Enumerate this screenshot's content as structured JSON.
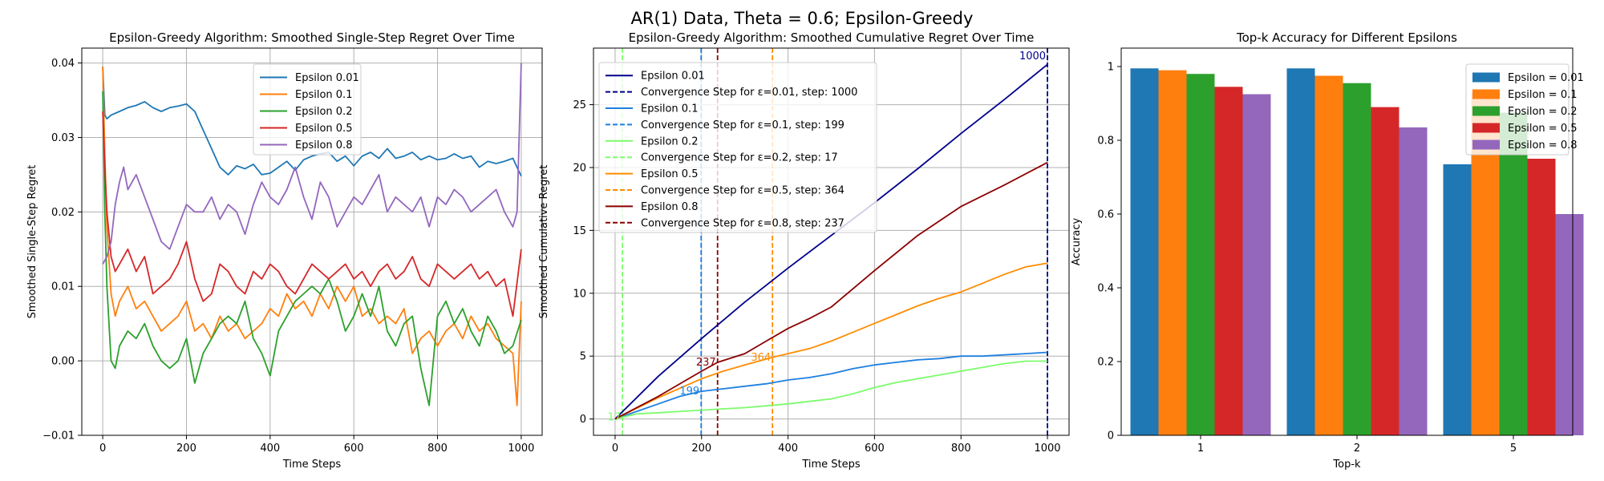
{
  "suptitle": "AR(1) Data, Theta = 0.6; Epsilon-Greedy",
  "chart_data": [
    {
      "type": "line",
      "title": "Epsilon-Greedy Algorithm: Smoothed Single-Step Regret Over Time",
      "xlabel": "Time Steps",
      "ylabel": "Smoothed Single-Step Regret",
      "xlim": [
        -50,
        1050
      ],
      "ylim": [
        -0.01,
        0.042
      ],
      "xticks": [
        0,
        200,
        400,
        600,
        800,
        1000
      ],
      "yticks": [
        -0.01,
        0.0,
        0.01,
        0.02,
        0.03,
        0.04
      ],
      "ytick_labels": [
        "−0.01",
        "0.00",
        "0.01",
        "0.02",
        "0.03",
        "0.04"
      ],
      "grid": true,
      "legend_position": "upper center",
      "series": [
        {
          "name": "Epsilon 0.01",
          "color": "#1f77b4",
          "x": [
            0,
            5,
            10,
            20,
            40,
            60,
            80,
            100,
            120,
            140,
            160,
            180,
            200,
            220,
            240,
            260,
            280,
            300,
            320,
            340,
            360,
            380,
            400,
            420,
            440,
            460,
            480,
            500,
            520,
            540,
            560,
            580,
            600,
            620,
            640,
            660,
            680,
            700,
            720,
            740,
            760,
            780,
            800,
            820,
            840,
            860,
            880,
            900,
            920,
            940,
            960,
            980,
            1000
          ],
          "y": [
            0.0395,
            0.033,
            0.0325,
            0.033,
            0.0335,
            0.034,
            0.0343,
            0.0348,
            0.034,
            0.0335,
            0.034,
            0.0342,
            0.0345,
            0.0335,
            0.031,
            0.0285,
            0.026,
            0.025,
            0.0262,
            0.0258,
            0.0264,
            0.025,
            0.0252,
            0.026,
            0.0268,
            0.0256,
            0.027,
            0.0275,
            0.0278,
            0.028,
            0.0268,
            0.0275,
            0.0262,
            0.0275,
            0.028,
            0.0272,
            0.0285,
            0.0272,
            0.0275,
            0.028,
            0.027,
            0.0275,
            0.027,
            0.0272,
            0.0278,
            0.0272,
            0.0275,
            0.026,
            0.0268,
            0.0265,
            0.0268,
            0.0272,
            0.0248
          ]
        },
        {
          "name": "Epsilon 0.1",
          "color": "#ff7f0e",
          "x": [
            0,
            5,
            10,
            20,
            30,
            40,
            60,
            80,
            100,
            120,
            140,
            160,
            180,
            200,
            220,
            240,
            260,
            280,
            300,
            320,
            340,
            360,
            380,
            400,
            420,
            440,
            460,
            480,
            500,
            520,
            540,
            560,
            580,
            600,
            620,
            640,
            660,
            680,
            700,
            720,
            740,
            760,
            780,
            800,
            820,
            840,
            860,
            880,
            900,
            920,
            940,
            960,
            980,
            990,
            1000
          ],
          "y": [
            0.0395,
            0.028,
            0.018,
            0.009,
            0.006,
            0.008,
            0.01,
            0.007,
            0.008,
            0.006,
            0.004,
            0.005,
            0.006,
            0.008,
            0.004,
            0.005,
            0.003,
            0.006,
            0.004,
            0.005,
            0.003,
            0.004,
            0.005,
            0.007,
            0.006,
            0.009,
            0.007,
            0.008,
            0.006,
            0.009,
            0.007,
            0.01,
            0.008,
            0.01,
            0.006,
            0.007,
            0.005,
            0.006,
            0.005,
            0.007,
            0.001,
            0.003,
            0.004,
            0.002,
            0.004,
            0.005,
            0.003,
            0.006,
            0.004,
            0.005,
            0.003,
            0.002,
            0.001,
            -0.006,
            0.008
          ]
        },
        {
          "name": "Epsilon 0.2",
          "color": "#2ca02c",
          "x": [
            0,
            5,
            10,
            20,
            30,
            40,
            60,
            80,
            100,
            120,
            140,
            160,
            180,
            200,
            220,
            240,
            260,
            280,
            300,
            320,
            340,
            360,
            380,
            400,
            420,
            440,
            460,
            480,
            500,
            520,
            540,
            560,
            580,
            600,
            620,
            640,
            660,
            680,
            700,
            720,
            740,
            760,
            780,
            800,
            820,
            840,
            860,
            880,
            900,
            920,
            940,
            960,
            980,
            1000
          ],
          "y": [
            0.0362,
            0.02,
            0.01,
            0.0,
            -0.001,
            0.002,
            0.004,
            0.003,
            0.005,
            0.002,
            0.0,
            -0.001,
            0.0,
            0.003,
            -0.003,
            0.001,
            0.003,
            0.005,
            0.006,
            0.005,
            0.008,
            0.003,
            0.001,
            -0.002,
            0.004,
            0.006,
            0.008,
            0.009,
            0.01,
            0.009,
            0.011,
            0.008,
            0.004,
            0.006,
            0.009,
            0.006,
            0.01,
            0.004,
            0.002,
            0.005,
            0.006,
            -0.001,
            -0.006,
            0.006,
            0.008,
            0.005,
            0.007,
            0.004,
            0.002,
            0.006,
            0.004,
            0.001,
            0.002,
            0.0055
          ]
        },
        {
          "name": "Epsilon 0.5",
          "color": "#d62728",
          "x": [
            0,
            5,
            10,
            20,
            30,
            40,
            60,
            80,
            100,
            120,
            140,
            160,
            180,
            200,
            220,
            240,
            260,
            280,
            300,
            320,
            340,
            360,
            380,
            400,
            420,
            440,
            460,
            480,
            500,
            520,
            540,
            560,
            580,
            600,
            620,
            640,
            660,
            680,
            700,
            720,
            740,
            760,
            780,
            800,
            820,
            840,
            860,
            880,
            900,
            920,
            940,
            960,
            980,
            1000
          ],
          "y": [
            0.0335,
            0.026,
            0.02,
            0.014,
            0.012,
            0.013,
            0.015,
            0.012,
            0.014,
            0.009,
            0.01,
            0.011,
            0.013,
            0.016,
            0.011,
            0.008,
            0.009,
            0.013,
            0.012,
            0.01,
            0.009,
            0.012,
            0.011,
            0.013,
            0.012,
            0.01,
            0.009,
            0.011,
            0.013,
            0.012,
            0.011,
            0.012,
            0.013,
            0.011,
            0.012,
            0.01,
            0.012,
            0.013,
            0.011,
            0.012,
            0.014,
            0.011,
            0.01,
            0.013,
            0.012,
            0.011,
            0.012,
            0.013,
            0.011,
            0.012,
            0.01,
            0.011,
            0.006,
            0.015
          ]
        },
        {
          "name": "Epsilon 0.8",
          "color": "#9467bd",
          "x": [
            0,
            10,
            20,
            30,
            40,
            50,
            60,
            80,
            100,
            120,
            140,
            160,
            180,
            200,
            220,
            240,
            260,
            280,
            300,
            320,
            340,
            360,
            380,
            400,
            420,
            440,
            460,
            480,
            500,
            520,
            540,
            560,
            580,
            600,
            620,
            640,
            660,
            680,
            700,
            720,
            740,
            760,
            780,
            800,
            820,
            840,
            860,
            880,
            900,
            920,
            940,
            960,
            980,
            990,
            1000
          ],
          "y": [
            0.013,
            0.014,
            0.016,
            0.021,
            0.024,
            0.026,
            0.023,
            0.025,
            0.022,
            0.019,
            0.016,
            0.015,
            0.018,
            0.021,
            0.02,
            0.02,
            0.022,
            0.019,
            0.021,
            0.02,
            0.017,
            0.021,
            0.024,
            0.022,
            0.021,
            0.023,
            0.026,
            0.022,
            0.019,
            0.024,
            0.022,
            0.018,
            0.02,
            0.022,
            0.021,
            0.023,
            0.025,
            0.02,
            0.022,
            0.021,
            0.02,
            0.022,
            0.018,
            0.022,
            0.021,
            0.023,
            0.022,
            0.02,
            0.021,
            0.022,
            0.023,
            0.02,
            0.018,
            0.02,
            0.04
          ]
        }
      ]
    },
    {
      "type": "line",
      "title": "Epsilon-Greedy Algorithm: Smoothed Cumulative Regret Over Time",
      "xlabel": "Time Steps",
      "ylabel": "Smoothed Cumulative Regret",
      "xlim": [
        -50,
        1050
      ],
      "ylim": [
        -1.3,
        29.5
      ],
      "xticks": [
        0,
        200,
        400,
        600,
        800,
        1000
      ],
      "yticks": [
        0,
        5,
        10,
        15,
        20,
        25
      ],
      "grid": true,
      "legend_position": "upper left",
      "series": [
        {
          "name": "Epsilon 0.01",
          "color": "#00008b",
          "x": [
            0,
            100,
            200,
            300,
            400,
            500,
            600,
            700,
            800,
            900,
            1000
          ],
          "y": [
            0,
            3.4,
            6.4,
            9.3,
            12.0,
            14.6,
            17.2,
            19.9,
            22.7,
            25.4,
            28.2
          ]
        },
        {
          "name": "Epsilon 0.1",
          "color": "#1e7fe0",
          "x": [
            0,
            100,
            150,
            200,
            250,
            300,
            350,
            400,
            450,
            500,
            550,
            600,
            650,
            700,
            750,
            800,
            850,
            900,
            950,
            1000
          ],
          "y": [
            0,
            1.2,
            1.8,
            2.2,
            2.4,
            2.6,
            2.8,
            3.1,
            3.3,
            3.6,
            4.0,
            4.3,
            4.5,
            4.7,
            4.8,
            5.0,
            5.0,
            5.1,
            5.2,
            5.3
          ]
        },
        {
          "name": "Epsilon 0.2",
          "color": "#7cfc6c",
          "x": [
            0,
            50,
            100,
            200,
            300,
            400,
            450,
            500,
            550,
            600,
            650,
            700,
            750,
            800,
            850,
            900,
            950,
            1000
          ],
          "y": [
            0,
            0.4,
            0.5,
            0.7,
            0.9,
            1.2,
            1.4,
            1.6,
            2.0,
            2.5,
            2.9,
            3.2,
            3.5,
            3.8,
            4.1,
            4.4,
            4.6,
            4.6
          ]
        },
        {
          "name": "Epsilon 0.5",
          "color": "#ff8c00",
          "x": [
            0,
            100,
            200,
            250,
            300,
            364,
            400,
            450,
            500,
            550,
            600,
            650,
            700,
            750,
            800,
            850,
            900,
            950,
            1000
          ],
          "y": [
            0,
            1.7,
            3.2,
            3.8,
            4.3,
            4.9,
            5.2,
            5.6,
            6.2,
            6.9,
            7.6,
            8.3,
            9.0,
            9.6,
            10.1,
            10.8,
            11.5,
            12.1,
            12.4
          ]
        },
        {
          "name": "Epsilon 0.8",
          "color": "#8b0000",
          "x": [
            0,
            100,
            200,
            237,
            300,
            350,
            400,
            450,
            500,
            600,
            700,
            800,
            900,
            1000
          ],
          "y": [
            0,
            1.8,
            3.8,
            4.5,
            5.2,
            6.2,
            7.2,
            8.0,
            8.9,
            11.8,
            14.6,
            16.9,
            18.6,
            20.4
          ]
        }
      ],
      "vlines": [
        {
          "label": "Convergence Step for ε=0.01, step: 1000",
          "x": 1000,
          "color": "#00008b",
          "annotation": "1000"
        },
        {
          "label": "Convergence Step for ε=0.1, step: 199",
          "x": 199,
          "color": "#1e7fe0",
          "annotation": "199"
        },
        {
          "label": "Convergence Step for ε=0.2, step: 17",
          "x": 17,
          "color": "#7cfc6c",
          "annotation": "17"
        },
        {
          "label": "Convergence Step for ε=0.5, step: 364",
          "x": 364,
          "color": "#ff8c00",
          "annotation": "364"
        },
        {
          "label": "Convergence Step for ε=0.8, step: 237",
          "x": 237,
          "color": "#8b0000",
          "annotation": "237"
        }
      ]
    },
    {
      "type": "bar",
      "title": "Top-k Accuracy for Different Epsilons",
      "xlabel": "Top-k",
      "ylabel": "Accuracy",
      "categories": [
        "1",
        "2",
        "5"
      ],
      "ylim": [
        0,
        1.05
      ],
      "yticks": [
        0.0,
        0.2,
        0.4,
        0.6,
        0.8,
        1.0
      ],
      "grid": false,
      "legend_position": "upper right",
      "series": [
        {
          "name": "Epsilon = 0.01",
          "color": "#1f77b4",
          "values": [
            0.995,
            0.995,
            0.735
          ]
        },
        {
          "name": "Epsilon = 0.1",
          "color": "#ff7f0e",
          "values": [
            0.99,
            0.975,
            0.93
          ]
        },
        {
          "name": "Epsilon = 0.2",
          "color": "#2ca02c",
          "values": [
            0.98,
            0.955,
            0.875
          ]
        },
        {
          "name": "Epsilon = 0.5",
          "color": "#d62728",
          "values": [
            0.945,
            0.89,
            0.75
          ]
        },
        {
          "name": "Epsilon = 0.8",
          "color": "#9467bd",
          "values": [
            0.925,
            0.835,
            0.6
          ]
        }
      ]
    }
  ]
}
